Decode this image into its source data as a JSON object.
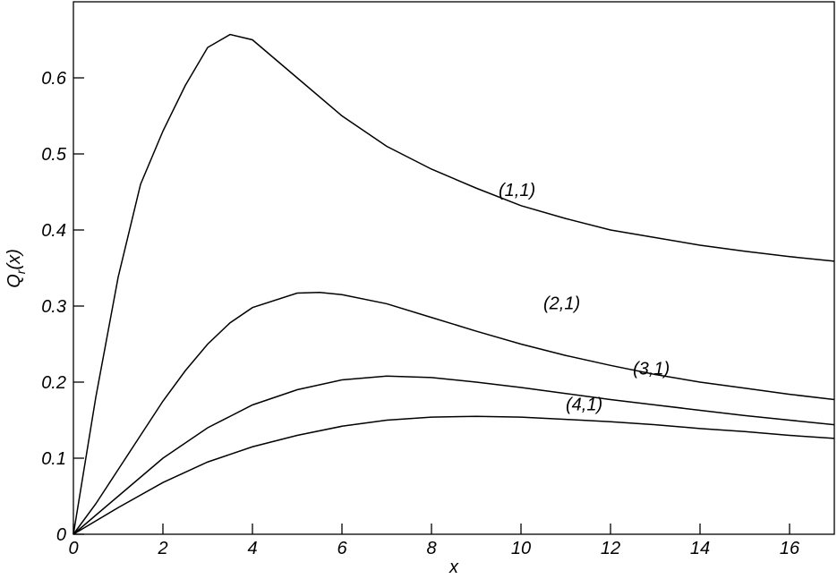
{
  "chart_data": {
    "type": "line",
    "xlabel": "x",
    "ylabel": {
      "main": "Q",
      "sub": "r",
      "rest": "(x)"
    },
    "xlim": [
      0,
      17
    ],
    "ylim": [
      0,
      0.7
    ],
    "xticks": [
      0,
      2,
      4,
      6,
      8,
      10,
      12,
      14,
      16
    ],
    "yticks": [
      0,
      0.1,
      0.2,
      0.3,
      0.4,
      0.5,
      0.6
    ],
    "color": "#000000",
    "series": [
      {
        "name": "(1,1)",
        "x": [
          0,
          0.5,
          1,
          1.5,
          2,
          2.5,
          3,
          3.5,
          4,
          5,
          6,
          7,
          8,
          9,
          10,
          11,
          12,
          13,
          14,
          15,
          16,
          17
        ],
        "values": [
          0,
          0.18,
          0.338,
          0.46,
          0.53,
          0.59,
          0.64,
          0.657,
          0.65,
          0.6,
          0.55,
          0.51,
          0.48,
          0.455,
          0.432,
          0.415,
          0.4,
          0.39,
          0.38,
          0.372,
          0.365,
          0.359
        ]
      },
      {
        "name": "(2,1)",
        "x": [
          0,
          0.5,
          1,
          1.5,
          2,
          2.5,
          3,
          3.5,
          4,
          5,
          5.5,
          6,
          7,
          8,
          9,
          10,
          11,
          12,
          13,
          14,
          15,
          16,
          17
        ],
        "values": [
          0,
          0.04,
          0.085,
          0.13,
          0.175,
          0.215,
          0.25,
          0.278,
          0.298,
          0.317,
          0.318,
          0.315,
          0.303,
          0.285,
          0.267,
          0.25,
          0.235,
          0.222,
          0.21,
          0.2,
          0.192,
          0.184,
          0.177
        ]
      },
      {
        "name": "(3,1)",
        "x": [
          0,
          1,
          2,
          3,
          4,
          5,
          6,
          7,
          8,
          9,
          10,
          11,
          12,
          13,
          14,
          15,
          16,
          17
        ],
        "values": [
          0,
          0.05,
          0.1,
          0.14,
          0.17,
          0.19,
          0.203,
          0.208,
          0.206,
          0.2,
          0.193,
          0.185,
          0.177,
          0.17,
          0.163,
          0.156,
          0.15,
          0.144
        ]
      },
      {
        "name": "(4,1)",
        "x": [
          0,
          1,
          2,
          3,
          4,
          5,
          6,
          7,
          8,
          9,
          10,
          11,
          12,
          13,
          14,
          15,
          16,
          17
        ],
        "values": [
          0,
          0.035,
          0.068,
          0.095,
          0.115,
          0.13,
          0.142,
          0.15,
          0.154,
          0.155,
          0.154,
          0.151,
          0.148,
          0.144,
          0.139,
          0.135,
          0.13,
          0.126
        ]
      }
    ]
  }
}
